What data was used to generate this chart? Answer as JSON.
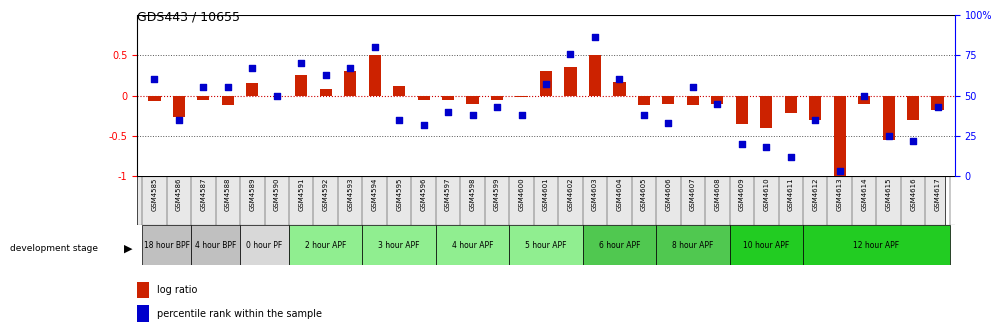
{
  "title": "GDS443 / 10655",
  "samples": [
    "GSM4585",
    "GSM4586",
    "GSM4587",
    "GSM4588",
    "GSM4589",
    "GSM4590",
    "GSM4591",
    "GSM4592",
    "GSM4593",
    "GSM4594",
    "GSM4595",
    "GSM4596",
    "GSM4597",
    "GSM4598",
    "GSM4599",
    "GSM4600",
    "GSM4601",
    "GSM4602",
    "GSM4603",
    "GSM4604",
    "GSM4605",
    "GSM4606",
    "GSM4607",
    "GSM4608",
    "GSM4609",
    "GSM4610",
    "GSM4611",
    "GSM4612",
    "GSM4613",
    "GSM4614",
    "GSM4615",
    "GSM4616",
    "GSM4617"
  ],
  "log_ratio": [
    -0.07,
    -0.27,
    -0.05,
    -0.12,
    0.15,
    0.0,
    0.25,
    0.08,
    0.3,
    0.5,
    0.12,
    -0.05,
    -0.05,
    -0.1,
    -0.05,
    -0.02,
    0.3,
    0.35,
    0.5,
    0.17,
    -0.12,
    -0.1,
    -0.12,
    -0.1,
    -0.35,
    -0.4,
    -0.22,
    -0.3,
    -1.0,
    -0.1,
    -0.55,
    -0.3,
    -0.18
  ],
  "percentile": [
    60,
    35,
    55,
    55,
    67,
    50,
    70,
    63,
    67,
    80,
    35,
    32,
    40,
    38,
    43,
    38,
    57,
    76,
    86,
    60,
    38,
    33,
    55,
    45,
    20,
    18,
    12,
    35,
    3,
    50,
    25,
    22,
    43
  ],
  "stages": [
    {
      "label": "18 hour BPF",
      "start": 0,
      "end": 2,
      "color": "#c0c0c0"
    },
    {
      "label": "4 hour BPF",
      "start": 2,
      "end": 4,
      "color": "#c0c0c0"
    },
    {
      "label": "0 hour PF",
      "start": 4,
      "end": 6,
      "color": "#d8d8d8"
    },
    {
      "label": "2 hour APF",
      "start": 6,
      "end": 9,
      "color": "#90ee90"
    },
    {
      "label": "3 hour APF",
      "start": 9,
      "end": 12,
      "color": "#90ee90"
    },
    {
      "label": "4 hour APF",
      "start": 12,
      "end": 15,
      "color": "#90ee90"
    },
    {
      "label": "5 hour APF",
      "start": 15,
      "end": 18,
      "color": "#90ee90"
    },
    {
      "label": "6 hour APF",
      "start": 18,
      "end": 21,
      "color": "#50c850"
    },
    {
      "label": "8 hour APF",
      "start": 21,
      "end": 24,
      "color": "#50c850"
    },
    {
      "label": "10 hour APF",
      "start": 24,
      "end": 27,
      "color": "#22cc22"
    },
    {
      "label": "12 hour APF",
      "start": 27,
      "end": 33,
      "color": "#22cc22"
    }
  ],
  "bar_color": "#cc2200",
  "dot_color": "#0000cc",
  "zero_line_color": "#cc0000",
  "dotted_line_color": "#555555",
  "ylim": [
    -1.0,
    1.0
  ],
  "y2lim": [
    0,
    100
  ],
  "yticks_left": [
    -1.0,
    -0.5,
    0.0,
    0.5
  ],
  "yticks_right": [
    0,
    25,
    50,
    75,
    100
  ],
  "ytick_labels_right": [
    "0",
    "25",
    "50",
    "75",
    "100%"
  ],
  "legend_log_ratio": "log ratio",
  "legend_percentile": "percentile rank within the sample"
}
